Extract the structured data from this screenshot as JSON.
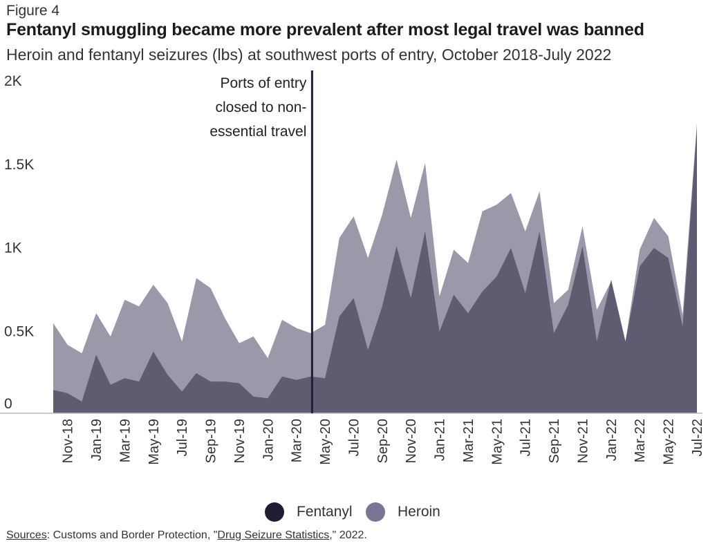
{
  "figure_label": "Figure 4",
  "title": "Fentanyl smuggling became more prevalent after most legal travel was banned",
  "subtitle": "Heroin and fentanyl seizures (lbs) at southwest ports of entry, October 2018-July 2022",
  "source": {
    "prefix": "Sources",
    "text_before_link": ": Customs and Border Protection, \"",
    "link_text": "Drug Seizure Statistics",
    "text_after_link": ",\" 2022."
  },
  "legend": [
    {
      "label": "Fentanyl",
      "color": "#211d35"
    },
    {
      "label": "Heroin",
      "color": "#7b7594"
    }
  ],
  "colors": {
    "fentanyl_area": "#5f5b70",
    "heroin_area": "#9c98aa",
    "event_line": "#211d35",
    "baseline": "#bbbbbb"
  },
  "chart_data": {
    "type": "area",
    "stacked": false,
    "xlabel": "",
    "ylabel": "",
    "ylim": [
      0,
      2000
    ],
    "y_ticks": [
      {
        "value": 0,
        "label": "0"
      },
      {
        "value": 500,
        "label": "0.5K"
      },
      {
        "value": 1000,
        "label": "1K"
      },
      {
        "value": 1500,
        "label": "1.5K"
      },
      {
        "value": 2000,
        "label": "2K"
      }
    ],
    "x_months": [
      "2018-10",
      "2018-11",
      "2018-12",
      "2019-01",
      "2019-02",
      "2019-03",
      "2019-04",
      "2019-05",
      "2019-06",
      "2019-07",
      "2019-08",
      "2019-09",
      "2019-10",
      "2019-11",
      "2019-12",
      "2020-01",
      "2020-02",
      "2020-03",
      "2020-04",
      "2020-05",
      "2020-06",
      "2020-07",
      "2020-08",
      "2020-09",
      "2020-10",
      "2020-11",
      "2020-12",
      "2021-01",
      "2021-02",
      "2021-03",
      "2021-04",
      "2021-05",
      "2021-06",
      "2021-07",
      "2021-08",
      "2021-09",
      "2021-10",
      "2021-11",
      "2021-12",
      "2022-01",
      "2022-02",
      "2022-03",
      "2022-04",
      "2022-05",
      "2022-06",
      "2022-07"
    ],
    "x_tick_labels": [
      {
        "month": "2018-11",
        "label": "Nov-18"
      },
      {
        "month": "2019-01",
        "label": "Jan-19"
      },
      {
        "month": "2019-03",
        "label": "Mar-19"
      },
      {
        "month": "2019-05",
        "label": "May-19"
      },
      {
        "month": "2019-07",
        "label": "Jul-19"
      },
      {
        "month": "2019-09",
        "label": "Sep-19"
      },
      {
        "month": "2019-11",
        "label": "Nov-19"
      },
      {
        "month": "2020-01",
        "label": "Jan-20"
      },
      {
        "month": "2020-03",
        "label": "Mar-20"
      },
      {
        "month": "2020-05",
        "label": "May-20"
      },
      {
        "month": "2020-07",
        "label": "Jul-20"
      },
      {
        "month": "2020-09",
        "label": "Sep-20"
      },
      {
        "month": "2020-11",
        "label": "Nov-20"
      },
      {
        "month": "2021-01",
        "label": "Jan-21"
      },
      {
        "month": "2021-03",
        "label": "Mar-21"
      },
      {
        "month": "2021-05",
        "label": "May-21"
      },
      {
        "month": "2021-07",
        "label": "Jul-21"
      },
      {
        "month": "2021-09",
        "label": "Sep-21"
      },
      {
        "month": "2021-11",
        "label": "Nov-21"
      },
      {
        "month": "2022-01",
        "label": "Jan-22"
      },
      {
        "month": "2022-03",
        "label": "Mar-22"
      },
      {
        "month": "2022-05",
        "label": "May-22"
      },
      {
        "month": "2022-07",
        "label": "Jul-22"
      }
    ],
    "series": [
      {
        "name": "Heroin",
        "values": [
          540,
          410,
          360,
          600,
          460,
          680,
          640,
          770,
          660,
          430,
          810,
          750,
          570,
          420,
          460,
          330,
          560,
          510,
          480,
          530,
          1050,
          1180,
          930,
          1190,
          1520,
          1170,
          1500,
          700,
          980,
          900,
          1210,
          1250,
          1320,
          1090,
          1330,
          660,
          740,
          1120,
          620,
          790,
          430,
          980,
          1170,
          1060,
          590,
          1740
        ]
      },
      {
        "name": "Fentanyl",
        "values": [
          140,
          120,
          70,
          350,
          170,
          210,
          190,
          370,
          230,
          130,
          240,
          190,
          190,
          180,
          100,
          90,
          220,
          200,
          220,
          210,
          580,
          690,
          380,
          640,
          1000,
          690,
          1090,
          490,
          710,
          600,
          730,
          820,
          990,
          720,
          1090,
          480,
          650,
          1000,
          430,
          800,
          430,
          880,
          990,
          930,
          520,
          1710
        ]
      }
    ],
    "annotations": [
      {
        "month": "2020-04",
        "text_lines": [
          "Ports of entry",
          "closed to non-",
          "essential travel"
        ]
      }
    ],
    "legend_position": "bottom-center",
    "grid": false
  }
}
